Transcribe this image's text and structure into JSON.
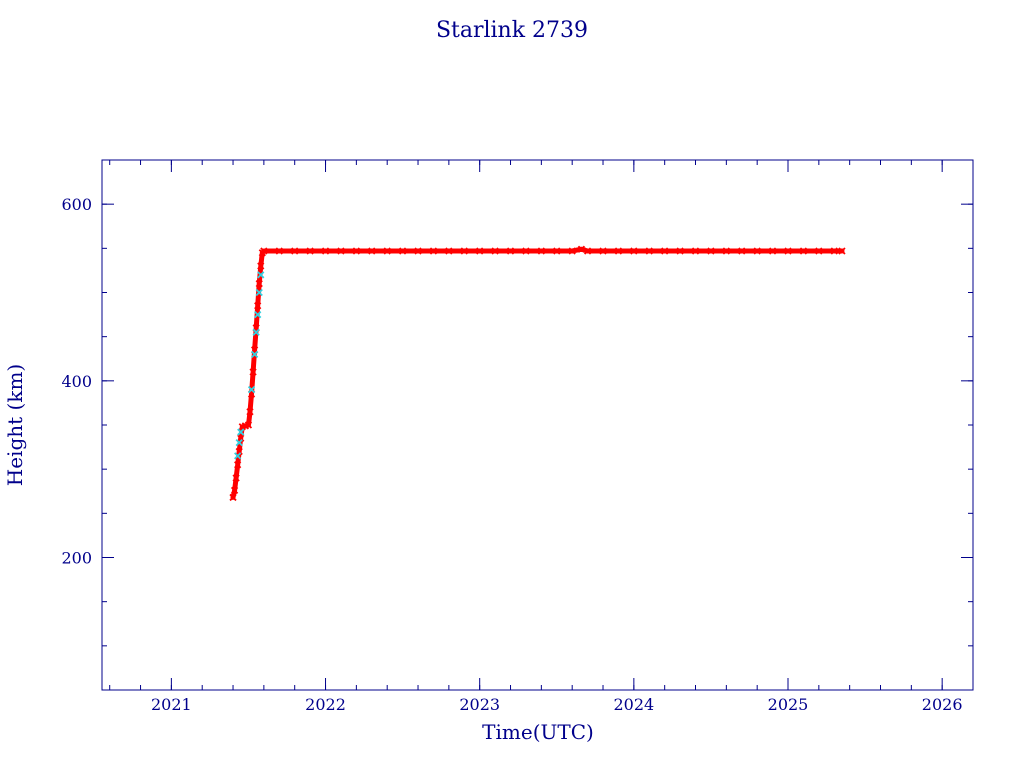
{
  "chart_data": {
    "type": "scatter",
    "title": "Starlink 2739",
    "xlabel": "Time(UTC)",
    "ylabel": "Height (km)",
    "xlim": [
      2020.55,
      2026.2
    ],
    "ylim": [
      50,
      650
    ],
    "x_ticks": [
      {
        "value": 2021,
        "label": "2021"
      },
      {
        "value": 2022,
        "label": "2022"
      },
      {
        "value": 2023,
        "label": "2023"
      },
      {
        "value": 2024,
        "label": "2024"
      },
      {
        "value": 2025,
        "label": "2025"
      },
      {
        "value": 2026,
        "label": "2026"
      }
    ],
    "y_ticks": [
      {
        "value": 200,
        "label": "200"
      },
      {
        "value": 400,
        "label": "400"
      },
      {
        "value": 600,
        "label": "600"
      }
    ],
    "x_minor_step": 0.2,
    "y_minor_step": 50,
    "grid": false,
    "colors": {
      "axes": "#00008b",
      "primary": "#ff0000",
      "secondary": "#30d0e0",
      "dark": "#8b1a1a"
    },
    "series": [
      {
        "color": "#ff0000",
        "marker": "x",
        "points": [
          [
            2021.4,
            268
          ],
          [
            2021.41,
            276
          ],
          [
            2021.42,
            290
          ],
          [
            2021.43,
            305
          ],
          [
            2021.44,
            320
          ],
          [
            2021.45,
            335
          ],
          [
            2021.46,
            348
          ],
          [
            2021.48,
            349
          ],
          [
            2021.5,
            350
          ],
          [
            2021.51,
            365
          ],
          [
            2021.52,
            385
          ],
          [
            2021.53,
            410
          ],
          [
            2021.54,
            435
          ],
          [
            2021.55,
            460
          ],
          [
            2021.56,
            485
          ],
          [
            2021.57,
            510
          ],
          [
            2021.58,
            530
          ],
          [
            2021.59,
            545
          ],
          [
            2021.6,
            547
          ],
          [
            2021.7,
            547
          ],
          [
            2021.8,
            547
          ],
          [
            2021.9,
            547
          ],
          [
            2022.0,
            547
          ],
          [
            2022.1,
            547
          ],
          [
            2022.2,
            547
          ],
          [
            2022.3,
            547
          ],
          [
            2022.4,
            547
          ],
          [
            2022.5,
            547
          ],
          [
            2022.6,
            547
          ],
          [
            2022.7,
            547
          ],
          [
            2022.8,
            547
          ],
          [
            2022.9,
            547
          ],
          [
            2023.0,
            547
          ],
          [
            2023.1,
            547
          ],
          [
            2023.2,
            547
          ],
          [
            2023.3,
            547
          ],
          [
            2023.4,
            547
          ],
          [
            2023.5,
            547
          ],
          [
            2023.6,
            547
          ],
          [
            2023.66,
            549
          ],
          [
            2023.7,
            547
          ],
          [
            2023.8,
            547
          ],
          [
            2023.9,
            547
          ],
          [
            2024.0,
            547
          ],
          [
            2024.1,
            547
          ],
          [
            2024.2,
            547
          ],
          [
            2024.3,
            547
          ],
          [
            2024.4,
            547
          ],
          [
            2024.5,
            547
          ],
          [
            2024.6,
            547
          ],
          [
            2024.7,
            547
          ],
          [
            2024.8,
            547
          ],
          [
            2024.9,
            547
          ],
          [
            2025.0,
            547
          ],
          [
            2025.1,
            547
          ],
          [
            2025.2,
            547
          ],
          [
            2025.3,
            547
          ],
          [
            2025.35,
            547
          ]
        ]
      },
      {
        "color": "#30d0e0",
        "marker": "x",
        "points": [
          [
            2021.43,
            315
          ],
          [
            2021.44,
            330
          ],
          [
            2021.45,
            342
          ],
          [
            2021.52,
            390
          ],
          [
            2021.54,
            430
          ],
          [
            2021.55,
            455
          ],
          [
            2021.56,
            475
          ],
          [
            2021.57,
            500
          ],
          [
            2021.58,
            520
          ]
        ]
      }
    ]
  }
}
